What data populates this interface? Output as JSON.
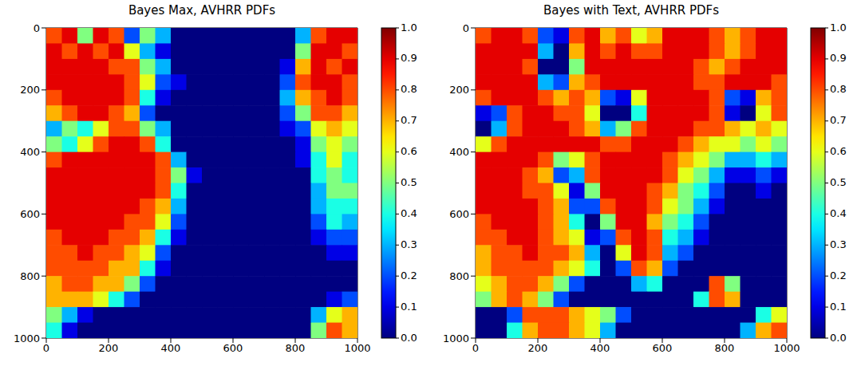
{
  "chart_data": [
    {
      "type": "heatmap",
      "title": "Bayes Max, AVHRR PDFs",
      "xlim": [
        0,
        1000
      ],
      "ylim": [
        1000,
        0
      ],
      "xticks": [
        0,
        200,
        400,
        600,
        800,
        1000
      ],
      "yticks": [
        0,
        200,
        400,
        600,
        800,
        1000
      ],
      "colorbar": {
        "range": [
          0,
          1
        ],
        "ticks": [
          {
            "value": 0,
            "label": "0.0"
          },
          0.1,
          0.2,
          0.3,
          0.4,
          0.5,
          0.6,
          0.7,
          0.8,
          0.9,
          {
            "value": 1,
            "label": "1.0"
          }
        ]
      },
      "cells": [
        [
          0.8,
          0.9,
          0.5,
          0.9,
          0.8,
          0.2,
          0.5,
          0.3,
          0,
          0,
          0,
          0,
          0,
          0,
          0,
          0,
          0.3,
          0.8,
          0.9,
          0.9
        ],
        [
          0.9,
          0.8,
          0.9,
          0.8,
          0.9,
          0.6,
          0.3,
          0.1,
          0,
          0,
          0,
          0,
          0,
          0,
          0,
          0,
          0.5,
          0.9,
          0.9,
          0.8
        ],
        [
          0.9,
          0.9,
          0.9,
          0.9,
          0.8,
          0.8,
          0.5,
          0.3,
          0,
          0,
          0,
          0,
          0,
          0,
          0,
          0.1,
          0.7,
          0.9,
          0.8,
          0.9
        ],
        [
          0.9,
          0.9,
          0.9,
          0.9,
          0.9,
          0.8,
          0.6,
          0.2,
          0.1,
          0,
          0,
          0,
          0,
          0,
          0,
          0.2,
          0.8,
          0.9,
          0.9,
          0.8
        ],
        [
          0.8,
          0.9,
          0.9,
          0.9,
          0.9,
          0.8,
          0.4,
          0.1,
          0,
          0,
          0,
          0,
          0,
          0,
          0,
          0.3,
          0.7,
          0.8,
          0.9,
          0.8
        ],
        [
          0.7,
          0.8,
          0.9,
          0.9,
          0.8,
          0.7,
          0.2,
          0,
          0,
          0,
          0,
          0,
          0,
          0,
          0,
          0.2,
          0.5,
          0.8,
          0.8,
          0.7
        ],
        [
          0.3,
          0.5,
          0.4,
          0.6,
          0.8,
          0.8,
          0.5,
          0.3,
          0,
          0,
          0,
          0,
          0,
          0,
          0,
          0.1,
          0.2,
          0.6,
          0.7,
          0.6
        ],
        [
          0.5,
          0.4,
          0.6,
          0.8,
          0.9,
          0.9,
          0.8,
          0.4,
          0,
          0,
          0,
          0,
          0,
          0,
          0,
          0,
          0.1,
          0.5,
          0.6,
          0.5
        ],
        [
          0.8,
          0.9,
          0.9,
          0.9,
          0.9,
          0.9,
          0.9,
          0.8,
          0.3,
          0,
          0,
          0,
          0,
          0,
          0,
          0,
          0.1,
          0.4,
          0.6,
          0.4
        ],
        [
          0.9,
          0.9,
          0.9,
          0.9,
          0.9,
          0.9,
          0.9,
          0.8,
          0.5,
          0.1,
          0,
          0,
          0,
          0,
          0,
          0,
          0,
          0.4,
          0.5,
          0.4
        ],
        [
          0.9,
          0.9,
          0.9,
          0.9,
          0.9,
          0.9,
          0.9,
          0.8,
          0.4,
          0,
          0,
          0,
          0,
          0,
          0,
          0,
          0,
          0.3,
          0.5,
          0.5
        ],
        [
          0.9,
          0.9,
          0.9,
          0.9,
          0.9,
          0.9,
          0.8,
          0.7,
          0.3,
          0,
          0,
          0,
          0,
          0,
          0,
          0,
          0,
          0.3,
          0.4,
          0.4
        ],
        [
          0.9,
          0.9,
          0.9,
          0.9,
          0.9,
          0.8,
          0.8,
          0.6,
          0.2,
          0,
          0,
          0,
          0,
          0,
          0,
          0,
          0,
          0.2,
          0.4,
          0.3
        ],
        [
          0.8,
          0.9,
          0.9,
          0.9,
          0.8,
          0.8,
          0.7,
          0.4,
          0.1,
          0,
          0,
          0,
          0,
          0,
          0,
          0,
          0,
          0.1,
          0.2,
          0.2
        ],
        [
          0.8,
          0.8,
          0.9,
          0.8,
          0.8,
          0.7,
          0.6,
          0.2,
          0,
          0,
          0,
          0,
          0,
          0,
          0,
          0,
          0,
          0,
          0.1,
          0.1
        ],
        [
          0.8,
          0.8,
          0.8,
          0.8,
          0.7,
          0.7,
          0.4,
          0.1,
          0,
          0,
          0,
          0,
          0,
          0,
          0,
          0,
          0,
          0,
          0,
          0
        ],
        [
          0.7,
          0.8,
          0.8,
          0.7,
          0.7,
          0.5,
          0.2,
          0,
          0,
          0,
          0,
          0,
          0,
          0,
          0,
          0,
          0,
          0,
          0,
          0
        ],
        [
          0.7,
          0.7,
          0.7,
          0.6,
          0.4,
          0.2,
          0,
          0,
          0,
          0,
          0,
          0,
          0,
          0,
          0,
          0,
          0,
          0,
          0.1,
          0.2
        ],
        [
          0.5,
          0.3,
          0.1,
          0,
          0,
          0,
          0,
          0,
          0,
          0,
          0,
          0,
          0,
          0,
          0,
          0,
          0,
          0.3,
          0.6,
          0.7
        ],
        [
          0.4,
          0.1,
          0,
          0,
          0,
          0,
          0,
          0,
          0,
          0,
          0,
          0,
          0,
          0,
          0,
          0,
          0,
          0.5,
          0.8,
          0.7
        ]
      ]
    },
    {
      "type": "heatmap",
      "title": "Bayes with Text, AVHRR PDFs",
      "xlim": [
        0,
        1000
      ],
      "ylim": [
        1000,
        0
      ],
      "xticks": [
        0,
        200,
        400,
        600,
        800,
        1000
      ],
      "yticks": [
        0,
        200,
        400,
        600,
        800,
        1000
      ],
      "colorbar": {
        "range": [
          0,
          1
        ],
        "ticks": [
          {
            "value": 0,
            "label": "0.0"
          },
          0.1,
          0.2,
          0.3,
          0.4,
          0.5,
          0.6,
          0.7,
          0.8,
          0.9,
          {
            "value": 1,
            "label": "1.0"
          }
        ]
      },
      "cells": [
        [
          0.8,
          0.9,
          0.9,
          0.8,
          0.2,
          0.1,
          0.8,
          0.9,
          0.7,
          0.8,
          0.6,
          0.7,
          0.9,
          0.9,
          0.9,
          0.8,
          0.7,
          0.8,
          0.9,
          0.9
        ],
        [
          0.9,
          0.9,
          0.9,
          0.9,
          0.3,
          0,
          0.7,
          0.9,
          0.8,
          0.9,
          0.8,
          0.8,
          0.9,
          0.9,
          0.9,
          0.8,
          0.7,
          0.8,
          0.9,
          0.9
        ],
        [
          0.9,
          0.9,
          0.9,
          0.8,
          0,
          0,
          0.5,
          0.9,
          0.9,
          0.9,
          0.9,
          0.9,
          0.9,
          0.9,
          0.8,
          0.7,
          0.8,
          0.9,
          0.9,
          0.9
        ],
        [
          0.9,
          0.9,
          0.9,
          0.9,
          0.3,
          0.2,
          0.7,
          0.8,
          0.9,
          0.9,
          0.9,
          0.9,
          0.9,
          0.9,
          0.8,
          0.8,
          0.9,
          0.9,
          0.9,
          0.8
        ],
        [
          0.8,
          0.9,
          0.9,
          0.9,
          0.8,
          0.7,
          0.8,
          0.7,
          0.2,
          0.1,
          0.6,
          0.9,
          0.9,
          0.9,
          0.9,
          0.8,
          0.2,
          0.1,
          0.7,
          0.8
        ],
        [
          0.1,
          0.2,
          0.8,
          0.9,
          0.9,
          0.8,
          0.8,
          0.6,
          0,
          0,
          0.4,
          0.9,
          0.9,
          0.9,
          0.9,
          0.8,
          0.1,
          0,
          0.6,
          0.8
        ],
        [
          0,
          0.3,
          0.8,
          0.9,
          0.9,
          0.9,
          0.8,
          0.7,
          0.3,
          0.5,
          0.8,
          0.9,
          0.9,
          0.9,
          0.8,
          0.8,
          0.7,
          0.6,
          0.7,
          0.6
        ],
        [
          0.6,
          0.8,
          0.9,
          0.9,
          0.9,
          0.9,
          0.9,
          0.9,
          0.8,
          0.8,
          0.9,
          0.9,
          0.9,
          0.8,
          0.7,
          0.6,
          0.6,
          0.5,
          0.6,
          0.5
        ],
        [
          0.9,
          0.9,
          0.9,
          0.9,
          0.8,
          0.5,
          0.6,
          0.8,
          0.9,
          0.9,
          0.9,
          0.9,
          0.8,
          0.7,
          0.6,
          0.5,
          0.3,
          0.3,
          0.4,
          0.3
        ],
        [
          0.9,
          0.9,
          0.9,
          0.8,
          0.7,
          0.2,
          0.3,
          0.8,
          0.9,
          0.9,
          0.9,
          0.9,
          0.8,
          0.6,
          0.5,
          0.3,
          0.1,
          0.1,
          0.2,
          0.1
        ],
        [
          0.9,
          0.9,
          0.9,
          0.8,
          0.8,
          0.6,
          0.1,
          0.5,
          0.9,
          0.9,
          0.9,
          0.8,
          0.7,
          0.5,
          0.4,
          0.2,
          0,
          0,
          0.1,
          0
        ],
        [
          0.9,
          0.9,
          0.9,
          0.9,
          0.8,
          0.7,
          0.2,
          0.2,
          0.8,
          0.9,
          0.9,
          0.8,
          0.6,
          0.5,
          0.3,
          0.1,
          0,
          0,
          0,
          0
        ],
        [
          0.8,
          0.9,
          0.9,
          0.9,
          0.8,
          0.7,
          0.4,
          0,
          0.5,
          0.9,
          0.9,
          0.7,
          0.5,
          0.4,
          0.2,
          0,
          0,
          0,
          0,
          0
        ],
        [
          0.8,
          0.8,
          0.9,
          0.9,
          0.8,
          0.7,
          0.6,
          0.1,
          0.2,
          0.8,
          0.9,
          0.8,
          0.4,
          0.3,
          0.1,
          0,
          0,
          0,
          0,
          0
        ],
        [
          0.7,
          0.8,
          0.8,
          0.9,
          0.8,
          0.8,
          0.7,
          0.3,
          0,
          0.6,
          0.9,
          0.8,
          0.3,
          0.2,
          0,
          0,
          0,
          0,
          0,
          0
        ],
        [
          0.7,
          0.8,
          0.8,
          0.8,
          0.8,
          0.7,
          0.6,
          0.4,
          0,
          0.2,
          0.8,
          0.7,
          0.2,
          0,
          0,
          0,
          0,
          0,
          0,
          0
        ],
        [
          0.6,
          0.7,
          0.8,
          0.8,
          0.7,
          0.5,
          0.2,
          0,
          0,
          0,
          0.3,
          0.4,
          0,
          0,
          0,
          0.8,
          0.5,
          0,
          0,
          0
        ],
        [
          0.5,
          0.7,
          0.8,
          0.7,
          0.5,
          0.2,
          0,
          0,
          0,
          0,
          0,
          0,
          0,
          0,
          0.4,
          0.8,
          0.7,
          0,
          0,
          0
        ],
        [
          0,
          0,
          0.2,
          0.8,
          0.8,
          0.8,
          0.7,
          0.6,
          0.5,
          0.2,
          0,
          0,
          0,
          0,
          0,
          0,
          0,
          0,
          0.4,
          0.6
        ],
        [
          0,
          0,
          0.4,
          0.7,
          0.8,
          0.8,
          0.7,
          0.6,
          0.3,
          0,
          0,
          0,
          0,
          0,
          0,
          0,
          0,
          0.3,
          0.7,
          0.8
        ]
      ]
    }
  ]
}
